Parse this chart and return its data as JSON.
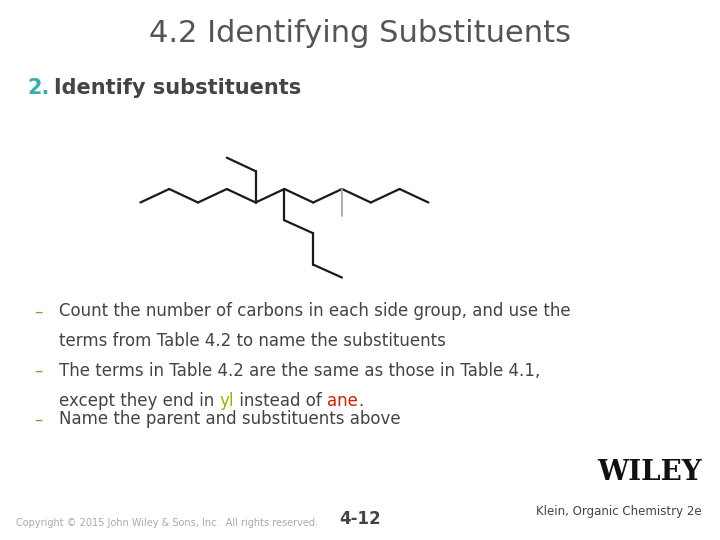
{
  "title": "4.2 Identifying Substituents",
  "title_color": "#555555",
  "title_fontsize": 22,
  "number_color": "#3aacac",
  "subtitle_text": "Identify substituents",
  "subtitle_fontsize": 15,
  "subtitle_color": "#444444",
  "bullet_color": "#6aaa44",
  "bullet_char": "–",
  "bullet_fontsize": 12,
  "bullet1_line1": "Count the number of carbons in each side group, and use the",
  "bullet1_line2": "terms from Table 4.2 to name the substituents",
  "bullet2_line1": "The terms in Table 4.2 are the same as those in Table 4.1,",
  "bullet2_pre": "except they end in ",
  "bullet2_yl": "yl",
  "bullet2_yl_color": "#88bb00",
  "bullet2_mid": " instead of ",
  "bullet2_ane": "ane",
  "bullet2_ane_color": "#cc2200",
  "bullet2_post": ".",
  "bullet3_line1": "Name the parent and substituents above",
  "copyright_text": "Copyright © 2015 John Wiley & Sons, Inc.  All rights reserved.",
  "page_number": "4-12",
  "wiley_label": "WILEY",
  "wiley_sub": "Klein, Organic Chemistry 2e",
  "background_color": "#ffffff",
  "text_color": "#444444",
  "mol_color": "#1a1a1a",
  "mol_lw": 1.6,
  "methyl_color": "#aaaaaa",
  "methyl_lw": 1.3,
  "mol_bonds": [
    [
      [
        0.195,
        0.625
      ],
      [
        0.235,
        0.65
      ]
    ],
    [
      [
        0.235,
        0.65
      ],
      [
        0.275,
        0.625
      ]
    ],
    [
      [
        0.275,
        0.625
      ],
      [
        0.315,
        0.65
      ]
    ],
    [
      [
        0.315,
        0.65
      ],
      [
        0.355,
        0.625
      ]
    ],
    [
      [
        0.355,
        0.625
      ],
      [
        0.395,
        0.65
      ]
    ],
    [
      [
        0.395,
        0.65
      ],
      [
        0.435,
        0.625
      ]
    ],
    [
      [
        0.435,
        0.625
      ],
      [
        0.475,
        0.65
      ]
    ],
    [
      [
        0.475,
        0.65
      ],
      [
        0.515,
        0.625
      ]
    ],
    [
      [
        0.515,
        0.625
      ],
      [
        0.555,
        0.65
      ]
    ],
    [
      [
        0.555,
        0.65
      ],
      [
        0.595,
        0.625
      ]
    ],
    [
      [
        0.395,
        0.65
      ],
      [
        0.395,
        0.592
      ]
    ],
    [
      [
        0.395,
        0.592
      ],
      [
        0.435,
        0.568
      ]
    ],
    [
      [
        0.435,
        0.568
      ],
      [
        0.435,
        0.51
      ]
    ],
    [
      [
        0.435,
        0.51
      ],
      [
        0.475,
        0.486
      ]
    ],
    [
      [
        0.355,
        0.625
      ],
      [
        0.355,
        0.683
      ]
    ],
    [
      [
        0.355,
        0.683
      ],
      [
        0.315,
        0.708
      ]
    ]
  ],
  "methyl_bonds": [
    [
      [
        0.475,
        0.65
      ],
      [
        0.475,
        0.6
      ]
    ]
  ]
}
